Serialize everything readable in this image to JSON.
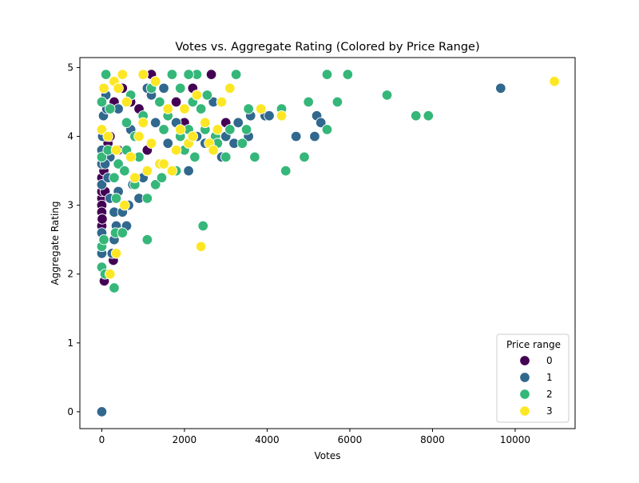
{
  "chart_data": {
    "type": "scatter",
    "title": "Votes vs. Aggregate Rating (Colored by Price Range)",
    "xlabel": "Votes",
    "ylabel": "Aggregate Rating",
    "xlim": [
      -530,
      11450
    ],
    "ylim": [
      -0.245,
      5.145
    ],
    "xticks": [
      0,
      2000,
      4000,
      6000,
      8000,
      10000
    ],
    "yticks": [
      0,
      1,
      2,
      3,
      4,
      5
    ],
    "grid": false,
    "legend": {
      "title": "Price range",
      "placement": "lower-right"
    },
    "series": [
      {
        "name": "0",
        "color": "#440154",
        "points": [
          [
            0,
            3.1
          ],
          [
            0,
            3.0
          ],
          [
            0,
            2.9
          ],
          [
            0,
            2.8
          ],
          [
            0,
            2.7
          ],
          [
            10,
            2.8
          ],
          [
            0,
            3.2
          ],
          [
            0,
            3.4
          ],
          [
            50,
            3.5
          ],
          [
            80,
            3.2
          ],
          [
            60,
            1.9
          ],
          [
            280,
            2.2
          ],
          [
            300,
            4.5
          ],
          [
            500,
            4.7
          ],
          [
            700,
            4.5
          ],
          [
            1800,
            4.5
          ],
          [
            2000,
            4.2
          ],
          [
            2650,
            4.9
          ],
          [
            3000,
            4.2
          ],
          [
            1200,
            4.9
          ],
          [
            900,
            4.4
          ],
          [
            1500,
            4.1
          ],
          [
            150,
            3.9
          ],
          [
            200,
            4.0
          ],
          [
            400,
            3.8
          ],
          [
            1100,
            3.8
          ],
          [
            2200,
            4.7
          ]
        ]
      },
      {
        "name": "1",
        "color": "#31688e",
        "points": [
          [
            0,
            0.0
          ],
          [
            0,
            2.3
          ],
          [
            0,
            2.6
          ],
          [
            0,
            3.3
          ],
          [
            0,
            3.6
          ],
          [
            0,
            3.8
          ],
          [
            20,
            4.0
          ],
          [
            40,
            4.3
          ],
          [
            60,
            4.7
          ],
          [
            100,
            4.6
          ],
          [
            120,
            4.4
          ],
          [
            150,
            3.4
          ],
          [
            200,
            3.1
          ],
          [
            250,
            2.3
          ],
          [
            300,
            2.9
          ],
          [
            350,
            2.7
          ],
          [
            400,
            3.2
          ],
          [
            450,
            2.6
          ],
          [
            500,
            2.9
          ],
          [
            600,
            2.7
          ],
          [
            650,
            3.0
          ],
          [
            750,
            3.3
          ],
          [
            900,
            3.1
          ],
          [
            1000,
            3.4
          ],
          [
            1100,
            4.7
          ],
          [
            1200,
            4.6
          ],
          [
            1500,
            4.7
          ],
          [
            1600,
            3.9
          ],
          [
            1800,
            4.2
          ],
          [
            2100,
            3.5
          ],
          [
            2300,
            4.0
          ],
          [
            2500,
            3.9
          ],
          [
            2700,
            4.5
          ],
          [
            2800,
            3.9
          ],
          [
            2900,
            3.7
          ],
          [
            3000,
            4.0
          ],
          [
            3200,
            3.9
          ],
          [
            3300,
            4.2
          ],
          [
            3500,
            4.1
          ],
          [
            3550,
            4.0
          ],
          [
            3600,
            4.3
          ],
          [
            3950,
            4.3
          ],
          [
            4050,
            4.3
          ],
          [
            4700,
            4.0
          ],
          [
            5150,
            4.0
          ],
          [
            5200,
            4.3
          ],
          [
            5300,
            4.2
          ],
          [
            9650,
            4.7
          ],
          [
            1000,
            4.9
          ],
          [
            700,
            4.1
          ],
          [
            400,
            4.4
          ],
          [
            1300,
            4.2
          ],
          [
            200,
            3.7
          ],
          [
            80,
            3.6
          ],
          [
            300,
            2.5
          ]
        ]
      },
      {
        "name": "2",
        "color": "#35b779",
        "points": [
          [
            0,
            2.1
          ],
          [
            0,
            2.4
          ],
          [
            0,
            3.7
          ],
          [
            0,
            4.5
          ],
          [
            50,
            2.5
          ],
          [
            80,
            2.0
          ],
          [
            100,
            4.9
          ],
          [
            150,
            3.8
          ],
          [
            200,
            4.4
          ],
          [
            300,
            1.8
          ],
          [
            330,
            2.6
          ],
          [
            350,
            3.1
          ],
          [
            400,
            3.6
          ],
          [
            500,
            2.6
          ],
          [
            550,
            3.5
          ],
          [
            600,
            4.2
          ],
          [
            700,
            4.6
          ],
          [
            800,
            4.0
          ],
          [
            900,
            3.7
          ],
          [
            1000,
            4.3
          ],
          [
            1100,
            2.5
          ],
          [
            1100,
            3.1
          ],
          [
            1200,
            4.7
          ],
          [
            1300,
            3.3
          ],
          [
            1400,
            4.5
          ],
          [
            1450,
            3.4
          ],
          [
            1500,
            4.1
          ],
          [
            1600,
            4.3
          ],
          [
            1700,
            4.9
          ],
          [
            1800,
            3.5
          ],
          [
            1900,
            4.0
          ],
          [
            2000,
            3.8
          ],
          [
            2100,
            4.1
          ],
          [
            2200,
            4.5
          ],
          [
            2250,
            3.7
          ],
          [
            2300,
            4.9
          ],
          [
            2400,
            4.4
          ],
          [
            2450,
            2.7
          ],
          [
            2500,
            4.1
          ],
          [
            2550,
            4.6
          ],
          [
            2750,
            4.0
          ],
          [
            2800,
            3.9
          ],
          [
            2900,
            4.5
          ],
          [
            3000,
            3.7
          ],
          [
            3100,
            4.1
          ],
          [
            3250,
            4.9
          ],
          [
            3400,
            3.9
          ],
          [
            3500,
            4.1
          ],
          [
            3550,
            4.4
          ],
          [
            3700,
            3.7
          ],
          [
            4350,
            4.4
          ],
          [
            4450,
            3.5
          ],
          [
            4900,
            3.7
          ],
          [
            5000,
            4.5
          ],
          [
            5450,
            4.1
          ],
          [
            5450,
            4.9
          ],
          [
            5700,
            4.5
          ],
          [
            5950,
            4.9
          ],
          [
            6900,
            4.6
          ],
          [
            7600,
            4.3
          ],
          [
            7900,
            4.3
          ],
          [
            2100,
            4.9
          ],
          [
            1900,
            4.7
          ],
          [
            600,
            3.8
          ],
          [
            800,
            3.3
          ],
          [
            300,
            3.4
          ]
        ]
      },
      {
        "name": "3",
        "color": "#fde725",
        "points": [
          [
            0,
            4.1
          ],
          [
            50,
            4.7
          ],
          [
            150,
            4.0
          ],
          [
            200,
            2.0
          ],
          [
            300,
            4.8
          ],
          [
            350,
            2.3
          ],
          [
            400,
            4.7
          ],
          [
            500,
            4.9
          ],
          [
            550,
            3.0
          ],
          [
            600,
            4.5
          ],
          [
            700,
            3.7
          ],
          [
            800,
            3.4
          ],
          [
            900,
            4.0
          ],
          [
            1000,
            4.2
          ],
          [
            1100,
            3.5
          ],
          [
            1200,
            3.9
          ],
          [
            1300,
            4.8
          ],
          [
            1400,
            3.6
          ],
          [
            1500,
            3.6
          ],
          [
            1600,
            4.4
          ],
          [
            1700,
            3.5
          ],
          [
            1800,
            3.8
          ],
          [
            1900,
            4.1
          ],
          [
            2000,
            4.4
          ],
          [
            2100,
            3.9
          ],
          [
            2200,
            4.0
          ],
          [
            2300,
            4.6
          ],
          [
            2400,
            2.4
          ],
          [
            2500,
            4.2
          ],
          [
            2600,
            3.9
          ],
          [
            2700,
            3.8
          ],
          [
            2800,
            4.1
          ],
          [
            2900,
            4.5
          ],
          [
            3100,
            4.7
          ],
          [
            3850,
            4.4
          ],
          [
            4350,
            4.3
          ],
          [
            10950,
            4.8
          ],
          [
            1000,
            4.9
          ],
          [
            600,
            4.5
          ],
          [
            350,
            3.8
          ]
        ]
      }
    ]
  }
}
